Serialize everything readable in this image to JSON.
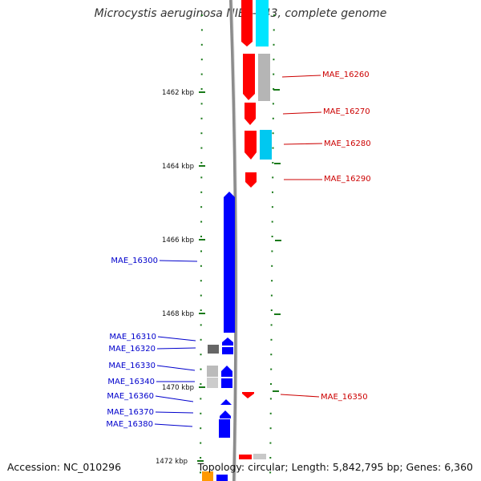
{
  "title": "Microcystis aeruginosa NIES-843, complete genome",
  "footer": {
    "accession": "Accession: NC_010296",
    "info": "Topology: circular; Length: 5,842,795 bp; Genes: 6,360"
  },
  "colors": {
    "backbone": "#8c8c8c",
    "forward_gene": "#ff0000",
    "reverse_gene": "#0000ff",
    "forward_label": "#cc0000",
    "reverse_label": "#0000cc",
    "tick": "#1a7a1a",
    "cyan_feature": "#00e5ff",
    "gray_feature": "#b5b5b5",
    "orange_feature": "#ff9900"
  },
  "scale": {
    "ticks": [
      "1462 kbp",
      "1464 kbp",
      "1466 kbp",
      "1468 kbp",
      "1470 kbp",
      "1472 kbp"
    ]
  },
  "forward_labels": [
    "MAE_16260",
    "MAE_16270",
    "MAE_16280",
    "MAE_16290",
    "MAE_16350"
  ],
  "reverse_labels": [
    "MAE_16300",
    "MAE_16310",
    "MAE_16320",
    "MAE_16330",
    "MAE_16340",
    "MAE_16360",
    "MAE_16370",
    "MAE_16380"
  ]
}
